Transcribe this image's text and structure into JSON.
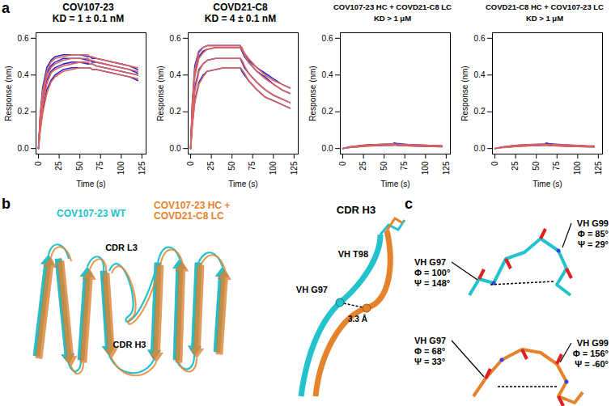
{
  "chart_data": [
    {
      "type": "line",
      "title": "COV107-23",
      "subtitle": "KD = 1 ± 0.1 nM",
      "x_label": "Time (s)",
      "y_label": "Response (nm)",
      "x": [
        0,
        2,
        5,
        10,
        15,
        20,
        30,
        40,
        50,
        60,
        62,
        65,
        70,
        80,
        90,
        100,
        110,
        120
      ],
      "xlim": [
        -3,
        130
      ],
      "xticks": [
        0,
        25,
        50,
        75,
        100,
        125
      ],
      "ylim": [
        -0.03,
        0.63
      ],
      "yticks": [
        {
          "value": 0,
          "label": "0.0"
        },
        {
          "value": 0.2,
          "label": "0.2"
        },
        {
          "value": 0.4,
          "label": "0.4"
        },
        {
          "value": 0.6,
          "label": "0.6"
        }
      ],
      "series": [
        {
          "color": "#2a2ad0",
          "values": [
            0,
            0.18,
            0.33,
            0.44,
            0.48,
            0.5,
            0.51,
            0.51,
            0.51,
            0.5,
            0.5,
            0.49,
            0.49,
            0.48,
            0.47,
            0.46,
            0.45,
            0.43
          ]
        },
        {
          "color": "#2a2ad0",
          "values": [
            0,
            0.16,
            0.3,
            0.41,
            0.45,
            0.47,
            0.49,
            0.49,
            0.49,
            0.48,
            0.48,
            0.47,
            0.47,
            0.46,
            0.45,
            0.44,
            0.43,
            0.41
          ]
        },
        {
          "color": "#2a2ad0",
          "values": [
            0,
            0.13,
            0.26,
            0.37,
            0.42,
            0.44,
            0.46,
            0.47,
            0.47,
            0.46,
            0.46,
            0.46,
            0.45,
            0.44,
            0.43,
            0.42,
            0.41,
            0.4
          ]
        },
        {
          "color": "#2a2ad0",
          "values": [
            0,
            0.1,
            0.21,
            0.32,
            0.37,
            0.4,
            0.43,
            0.44,
            0.44,
            0.44,
            0.44,
            0.43,
            0.43,
            0.42,
            0.41,
            0.4,
            0.39,
            0.37
          ]
        },
        {
          "color": "#e0635a",
          "values": [
            0,
            0.17,
            0.31,
            0.42,
            0.47,
            0.49,
            0.5,
            0.51,
            0.51,
            0.51,
            0.5,
            0.5,
            0.49,
            0.48,
            0.47,
            0.46,
            0.45,
            0.44
          ]
        },
        {
          "color": "#e0635a",
          "values": [
            0,
            0.15,
            0.28,
            0.39,
            0.44,
            0.46,
            0.48,
            0.49,
            0.49,
            0.49,
            0.48,
            0.48,
            0.47,
            0.46,
            0.45,
            0.44,
            0.43,
            0.42
          ]
        },
        {
          "color": "#e0635a",
          "values": [
            0,
            0.12,
            0.24,
            0.35,
            0.41,
            0.43,
            0.45,
            0.46,
            0.47,
            0.47,
            0.46,
            0.46,
            0.45,
            0.44,
            0.43,
            0.42,
            0.41,
            0.4
          ]
        },
        {
          "color": "#e0635a",
          "values": [
            0,
            0.09,
            0.19,
            0.3,
            0.36,
            0.39,
            0.42,
            0.43,
            0.44,
            0.44,
            0.44,
            0.43,
            0.43,
            0.42,
            0.41,
            0.4,
            0.39,
            0.38
          ]
        }
      ]
    },
    {
      "type": "line",
      "title": "COVD21-C8",
      "subtitle": "KD = 4 ± 0.1 nM",
      "x_label": "Time (s)",
      "y_label": "Response (nm)",
      "x": [
        0,
        2,
        5,
        10,
        15,
        20,
        30,
        40,
        50,
        60,
        62,
        65,
        70,
        80,
        90,
        100,
        110,
        120
      ],
      "xlim": [
        -3,
        130
      ],
      "xticks": [
        0,
        25,
        50,
        75,
        100,
        125
      ],
      "ylim": [
        -0.03,
        0.63
      ],
      "yticks": [
        {
          "value": 0,
          "label": "0.0"
        },
        {
          "value": 0.2,
          "label": "0.2"
        },
        {
          "value": 0.4,
          "label": "0.4"
        },
        {
          "value": 0.6,
          "label": "0.6"
        }
      ],
      "series": [
        {
          "color": "#2a2ad0",
          "values": [
            0,
            0.25,
            0.45,
            0.53,
            0.55,
            0.56,
            0.56,
            0.56,
            0.56,
            0.56,
            0.54,
            0.51,
            0.48,
            0.44,
            0.41,
            0.38,
            0.35,
            0.33
          ]
        },
        {
          "color": "#2a2ad0",
          "values": [
            0,
            0.22,
            0.41,
            0.5,
            0.53,
            0.54,
            0.55,
            0.55,
            0.55,
            0.55,
            0.53,
            0.5,
            0.47,
            0.42,
            0.39,
            0.35,
            0.32,
            0.3
          ]
        },
        {
          "color": "#2a2ad0",
          "values": [
            0,
            0.17,
            0.33,
            0.43,
            0.46,
            0.48,
            0.49,
            0.49,
            0.49,
            0.49,
            0.47,
            0.44,
            0.41,
            0.36,
            0.32,
            0.29,
            0.27,
            0.25
          ]
        },
        {
          "color": "#2a2ad0",
          "values": [
            0,
            0.13,
            0.26,
            0.36,
            0.4,
            0.42,
            0.43,
            0.44,
            0.44,
            0.44,
            0.42,
            0.4,
            0.37,
            0.32,
            0.28,
            0.26,
            0.24,
            0.22
          ]
        },
        {
          "color": "#e0635a",
          "values": [
            0,
            0.24,
            0.43,
            0.52,
            0.55,
            0.56,
            0.56,
            0.56,
            0.56,
            0.56,
            0.55,
            0.52,
            0.49,
            0.44,
            0.4,
            0.37,
            0.35,
            0.33
          ]
        },
        {
          "color": "#e0635a",
          "values": [
            0,
            0.21,
            0.39,
            0.49,
            0.52,
            0.54,
            0.55,
            0.55,
            0.55,
            0.55,
            0.54,
            0.51,
            0.47,
            0.42,
            0.38,
            0.35,
            0.32,
            0.3
          ]
        },
        {
          "color": "#e0635a",
          "values": [
            0,
            0.16,
            0.31,
            0.42,
            0.46,
            0.48,
            0.49,
            0.49,
            0.49,
            0.49,
            0.48,
            0.45,
            0.41,
            0.36,
            0.32,
            0.29,
            0.27,
            0.25
          ]
        },
        {
          "color": "#e0635a",
          "values": [
            0,
            0.12,
            0.25,
            0.35,
            0.39,
            0.42,
            0.43,
            0.44,
            0.44,
            0.44,
            0.43,
            0.41,
            0.37,
            0.32,
            0.28,
            0.26,
            0.24,
            0.22
          ]
        }
      ]
    },
    {
      "type": "line",
      "title": "COV107-23 HC + COVD21-C8 LC",
      "subtitle": "KD > 1 μM",
      "x_label": "Time (s)",
      "y_label": "Response (nm)",
      "x": [
        0,
        2,
        5,
        10,
        15,
        20,
        30,
        40,
        50,
        60,
        62,
        65,
        70,
        80,
        90,
        100,
        110,
        120
      ],
      "xlim": [
        -3,
        130
      ],
      "xticks": [
        0,
        25,
        50,
        75,
        100,
        125
      ],
      "ylim": [
        -0.03,
        0.63
      ],
      "yticks": [
        {
          "value": 0,
          "label": "0.0"
        },
        {
          "value": 0.2,
          "label": "0.2"
        },
        {
          "value": 0.4,
          "label": "0.4"
        },
        {
          "value": 0.6,
          "label": "0.6"
        }
      ],
      "series": [
        {
          "color": "#2a2ad0",
          "values": [
            0,
            0.003,
            0.006,
            0.01,
            0.013,
            0.016,
            0.02,
            0.022,
            0.024,
            0.026,
            0.03,
            0.028,
            0.026,
            0.022,
            0.02,
            0.018,
            0.016,
            0.015
          ]
        },
        {
          "color": "#2a2ad0",
          "values": [
            0,
            0.002,
            0.004,
            0.007,
            0.009,
            0.011,
            0.014,
            0.016,
            0.017,
            0.018,
            0.021,
            0.019,
            0.017,
            0.015,
            0.013,
            0.012,
            0.011,
            0.01
          ]
        },
        {
          "color": "#e0635a",
          "values": [
            0,
            0.003,
            0.005,
            0.009,
            0.012,
            0.015,
            0.019,
            0.022,
            0.024,
            0.026,
            0.025,
            0.024,
            0.023,
            0.021,
            0.019,
            0.018,
            0.016,
            0.015
          ]
        },
        {
          "color": "#e0635a",
          "values": [
            0,
            0.002,
            0.004,
            0.006,
            0.008,
            0.01,
            0.013,
            0.015,
            0.017,
            0.018,
            0.018,
            0.017,
            0.016,
            0.014,
            0.013,
            0.012,
            0.011,
            0.01
          ]
        }
      ]
    },
    {
      "type": "line",
      "title": "COVD21-C8 HC + COV107-23 LC",
      "subtitle": "KD > 1 μM",
      "x_label": "Time (s)",
      "y_label": "Response (nm)",
      "x": [
        0,
        2,
        5,
        10,
        15,
        20,
        30,
        40,
        50,
        60,
        62,
        65,
        70,
        80,
        90,
        100,
        110,
        120
      ],
      "xlim": [
        -3,
        130
      ],
      "xticks": [
        0,
        25,
        50,
        75,
        100,
        125
      ],
      "ylim": [
        -0.03,
        0.63
      ],
      "yticks": [
        {
          "value": 0,
          "label": "0.0"
        },
        {
          "value": 0.2,
          "label": "0.2"
        },
        {
          "value": 0.4,
          "label": "0.4"
        },
        {
          "value": 0.6,
          "label": "0.6"
        }
      ],
      "series": [
        {
          "color": "#2a2ad0",
          "values": [
            0,
            0.003,
            0.005,
            0.009,
            0.012,
            0.015,
            0.019,
            0.021,
            0.023,
            0.025,
            0.03,
            0.027,
            0.025,
            0.021,
            0.019,
            0.017,
            0.015,
            0.014
          ]
        },
        {
          "color": "#2a2ad0",
          "values": [
            0,
            0.002,
            0.004,
            0.006,
            0.008,
            0.01,
            0.013,
            0.015,
            0.016,
            0.017,
            0.02,
            0.018,
            0.016,
            0.014,
            0.012,
            0.011,
            0.01,
            0.009
          ]
        },
        {
          "color": "#e0635a",
          "values": [
            0,
            0.003,
            0.005,
            0.008,
            0.011,
            0.014,
            0.018,
            0.021,
            0.023,
            0.025,
            0.024,
            0.023,
            0.022,
            0.02,
            0.018,
            0.017,
            0.015,
            0.014
          ]
        },
        {
          "color": "#e0635a",
          "values": [
            0,
            0.002,
            0.003,
            0.005,
            0.007,
            0.009,
            0.012,
            0.014,
            0.016,
            0.017,
            0.017,
            0.016,
            0.015,
            0.013,
            0.012,
            0.011,
            0.01,
            0.009
          ]
        }
      ]
    }
  ],
  "panel_labels": [
    "a",
    "b",
    "c"
  ],
  "panel_b": {
    "legend": [
      {
        "lines": [
          "COV107-23 WT"
        ],
        "color": "#22c3cc"
      },
      {
        "lines": [
          "COV107-23 HC +",
          "COVD21-C8 LC"
        ],
        "color": "#e5832d"
      }
    ],
    "loop_labels": [
      "CDR L3",
      "CDR H3"
    ],
    "zoom": {
      "title": "CDR H3",
      "residue_top": "VH T98",
      "residue_left": "VH G97",
      "distance": "3.3 Å"
    }
  },
  "panel_c": [
    {
      "color": "#22c3cc",
      "residues": [
        {
          "name": "VH G97",
          "phi": "Φ = 100°",
          "psi": "Ψ = 148°"
        },
        {
          "name": "VH G99",
          "phi": "Φ = 85°",
          "psi": "Ψ = 29°"
        }
      ]
    },
    {
      "color": "#e5832d",
      "residues": [
        {
          "name": "VH G97",
          "phi": "Φ = 68°",
          "psi": "Ψ = 33°"
        },
        {
          "name": "VH G99",
          "phi": "Φ = 156°",
          "psi": "Ψ = -60°"
        }
      ]
    }
  ]
}
